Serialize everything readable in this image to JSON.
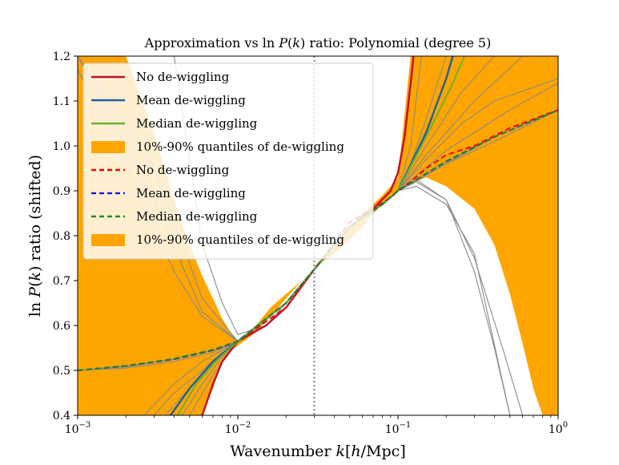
{
  "chart_data": {
    "type": "line",
    "title": "Approximation vs ln P(k) ratio: Polynomial (degree 5)",
    "xlabel": "Wavenumber k[h/Mpc]",
    "ylabel": "ln P(k) ratio (shifted)",
    "xscale": "log",
    "xlim": [
      0.001,
      1.0
    ],
    "ylim": [
      0.4,
      1.2
    ],
    "xticks": [
      {
        "value": 0.001,
        "label": "10^-3",
        "base": "10",
        "exp": "-3"
      },
      {
        "value": 0.01,
        "label": "10^-2",
        "base": "10",
        "exp": "-2"
      },
      {
        "value": 0.1,
        "label": "10^-1",
        "base": "10",
        "exp": "-1"
      },
      {
        "value": 1.0,
        "label": "10^0",
        "base": "10",
        "exp": "0"
      }
    ],
    "yticks": [
      {
        "value": 0.4,
        "label": "0.4"
      },
      {
        "value": 0.5,
        "label": "0.5"
      },
      {
        "value": 0.6,
        "label": "0.6"
      },
      {
        "value": 0.7,
        "label": "0.7"
      },
      {
        "value": 0.8,
        "label": "0.8"
      },
      {
        "value": 0.9,
        "label": "0.9"
      },
      {
        "value": 1.0,
        "label": "1.0"
      },
      {
        "value": 1.1,
        "label": "1.1"
      },
      {
        "value": 1.2,
        "label": "1.2"
      }
    ],
    "vline": {
      "x": 0.03,
      "style": "dotted",
      "color": "#888888"
    },
    "band": {
      "name": "10%-90% quantiles of de-wiggling",
      "color": "#ffa500",
      "x": [
        0.001,
        0.002,
        0.003,
        0.004,
        0.005,
        0.006,
        0.007,
        0.008,
        0.009,
        0.01,
        0.013,
        0.016,
        0.02,
        0.025,
        0.03,
        0.04,
        0.05,
        0.06,
        0.07,
        0.08,
        0.09,
        0.1,
        0.12,
        0.15,
        0.2,
        0.3,
        0.4,
        0.5,
        0.6,
        0.7,
        0.8,
        1.0
      ],
      "upper": [
        1.2,
        1.2,
        1.03,
        0.88,
        0.78,
        0.71,
        0.66,
        0.615,
        0.585,
        0.565,
        0.6,
        0.64,
        0.67,
        0.7,
        0.73,
        0.78,
        0.82,
        0.85,
        0.87,
        0.89,
        0.91,
        0.93,
        1.2,
        1.2,
        1.2,
        1.2,
        1.2,
        1.2,
        1.2,
        1.2,
        1.2,
        1.2
      ],
      "lower": [
        0.4,
        0.4,
        0.4,
        0.4,
        0.4,
        0.4,
        0.46,
        0.52,
        0.545,
        0.555,
        0.585,
        0.62,
        0.66,
        0.7,
        0.73,
        0.76,
        0.79,
        0.82,
        0.85,
        0.87,
        0.89,
        0.9,
        0.915,
        0.93,
        0.91,
        0.86,
        0.78,
        0.67,
        0.56,
        0.46,
        0.4,
        0.4
      ]
    },
    "gray_curves": [
      {
        "x": [
          0.001,
          0.003,
          0.006,
          0.01,
          0.02,
          0.03,
          0.05,
          0.08,
          0.1,
          0.13,
          0.2,
          0.3,
          0.45,
          0.6
        ],
        "y": [
          1.2,
          0.95,
          0.66,
          0.565,
          0.65,
          0.725,
          0.82,
          0.87,
          0.9,
          0.92,
          0.88,
          0.75,
          0.55,
          0.4
        ]
      },
      {
        "x": [
          0.001,
          0.003,
          0.006,
          0.01,
          0.02,
          0.03,
          0.05,
          0.08,
          0.1,
          0.13,
          0.2,
          0.3,
          0.4,
          0.5
        ],
        "y": [
          1.2,
          0.88,
          0.63,
          0.565,
          0.65,
          0.725,
          0.82,
          0.87,
          0.9,
          0.925,
          0.88,
          0.72,
          0.55,
          0.4
        ]
      },
      {
        "x": [
          0.001,
          0.002,
          0.004,
          0.006,
          0.01,
          0.02,
          0.03,
          0.05,
          0.08,
          0.1,
          0.15,
          0.25,
          0.4,
          1.0
        ],
        "y": [
          1.17,
          0.96,
          0.72,
          0.62,
          0.565,
          0.65,
          0.725,
          0.82,
          0.87,
          0.9,
          0.97,
          1.05,
          1.1,
          1.15
        ]
      },
      {
        "x": [
          0.001,
          0.002,
          0.004,
          0.007,
          0.01,
          0.02,
          0.03,
          0.05,
          0.08,
          0.1,
          0.2,
          0.4,
          1.0
        ],
        "y": [
          0.5,
          0.51,
          0.525,
          0.545,
          0.565,
          0.65,
          0.725,
          0.82,
          0.87,
          0.9,
          0.96,
          1.02,
          1.08
        ]
      },
      {
        "x": [
          0.001,
          0.002,
          0.004,
          0.007,
          0.01,
          0.02,
          0.03,
          0.05,
          0.08,
          0.1,
          0.2,
          0.4,
          1.0
        ],
        "y": [
          0.5,
          0.505,
          0.52,
          0.54,
          0.565,
          0.65,
          0.725,
          0.82,
          0.87,
          0.9,
          0.96,
          1.01,
          1.08
        ]
      },
      {
        "x": [
          0.003,
          0.004,
          0.006,
          0.008,
          0.01,
          0.02,
          0.03,
          0.05,
          0.08,
          0.1,
          0.12,
          0.15,
          0.2
        ],
        "y": [
          0.4,
          0.45,
          0.5,
          0.54,
          0.565,
          0.65,
          0.725,
          0.82,
          0.87,
          0.9,
          0.96,
          1.06,
          1.2
        ]
      },
      {
        "x": [
          0.0045,
          0.006,
          0.008,
          0.01,
          0.02,
          0.03,
          0.05,
          0.08,
          0.1,
          0.15,
          0.25,
          0.4
        ],
        "y": [
          0.4,
          0.47,
          0.53,
          0.565,
          0.65,
          0.725,
          0.82,
          0.87,
          0.9,
          1.0,
          1.12,
          1.2
        ]
      },
      {
        "x": [
          0.0035,
          0.005,
          0.007,
          0.01,
          0.02,
          0.03,
          0.05,
          0.08,
          0.1,
          0.15,
          0.3,
          0.6
        ],
        "y": [
          0.4,
          0.46,
          0.52,
          0.565,
          0.65,
          0.725,
          0.82,
          0.87,
          0.9,
          0.98,
          1.1,
          1.2
        ]
      },
      {
        "x": [
          0.005,
          0.007,
          0.01,
          0.02,
          0.03,
          0.05,
          0.08,
          0.1,
          0.12,
          0.14
        ],
        "y": [
          0.4,
          0.49,
          0.565,
          0.65,
          0.725,
          0.82,
          0.87,
          0.9,
          1.0,
          1.2
        ]
      },
      {
        "x": [
          0.0026,
          0.004,
          0.006,
          0.01,
          0.02,
          0.03,
          0.05,
          0.08,
          0.1,
          0.2,
          0.5,
          1.0
        ],
        "y": [
          0.4,
          0.47,
          0.52,
          0.565,
          0.65,
          0.725,
          0.82,
          0.87,
          0.9,
          0.99,
          1.08,
          1.14
        ]
      },
      {
        "x": [
          0.004,
          0.006,
          0.008,
          0.01,
          0.015,
          0.02,
          0.03,
          0.05,
          0.08,
          0.1,
          0.13,
          0.2,
          0.3,
          0.5
        ],
        "y": [
          1.2,
          0.78,
          0.65,
          0.58,
          0.6,
          0.65,
          0.725,
          0.82,
          0.87,
          0.9,
          0.91,
          0.87,
          0.76,
          0.4
        ]
      },
      {
        "x": [
          0.001,
          0.002,
          0.004,
          0.007,
          0.01,
          0.02,
          0.03,
          0.05,
          0.08,
          0.1,
          0.2,
          0.4,
          1.0
        ],
        "y": [
          0.5,
          0.508,
          0.525,
          0.545,
          0.565,
          0.65,
          0.725,
          0.82,
          0.87,
          0.9,
          0.965,
          1.02,
          1.08
        ]
      }
    ],
    "series": [
      {
        "name": "No de-wiggling",
        "color": "#c0102a",
        "style": "solid",
        "width": 2.4,
        "x": [
          0.006,
          0.007,
          0.008,
          0.01,
          0.015,
          0.02,
          0.03,
          0.05,
          0.07,
          0.09,
          0.1,
          0.11,
          0.12,
          0.125
        ],
        "y": [
          0.4,
          0.47,
          0.52,
          0.565,
          0.6,
          0.64,
          0.725,
          0.82,
          0.86,
          0.9,
          0.94,
          1.02,
          1.14,
          1.2
        ]
      },
      {
        "name": "Mean de-wiggling",
        "color": "#1f5fa0",
        "style": "solid",
        "width": 2.4,
        "x": [
          0.0038,
          0.005,
          0.007,
          0.01,
          0.02,
          0.03,
          0.05,
          0.08,
          0.1,
          0.15,
          0.2,
          0.22
        ],
        "y": [
          0.4,
          0.46,
          0.52,
          0.565,
          0.65,
          0.725,
          0.82,
          0.87,
          0.9,
          1.03,
          1.15,
          1.2
        ]
      },
      {
        "name": "Median de-wiggling",
        "color": "#6ab32e",
        "style": "solid",
        "width": 2.0,
        "x": [
          0.0042,
          0.0055,
          0.0075,
          0.01,
          0.02,
          0.03,
          0.05,
          0.08,
          0.1,
          0.15,
          0.22,
          0.26
        ],
        "y": [
          0.4,
          0.47,
          0.525,
          0.565,
          0.65,
          0.725,
          0.82,
          0.87,
          0.9,
          1.02,
          1.14,
          1.2
        ]
      },
      {
        "name": "No de-wiggling",
        "color": "#ff0000",
        "style": "dashed",
        "width": 2.0,
        "x": [
          0.001,
          0.002,
          0.004,
          0.007,
          0.01,
          0.02,
          0.03,
          0.05,
          0.07,
          0.09,
          0.1,
          0.12,
          0.15,
          0.2,
          0.3,
          0.5,
          1.0
        ],
        "y": [
          0.5,
          0.51,
          0.525,
          0.545,
          0.565,
          0.64,
          0.725,
          0.83,
          0.86,
          0.885,
          0.9,
          0.92,
          0.95,
          0.98,
          1.0,
          1.04,
          1.08
        ]
      },
      {
        "name": "Mean de-wiggling",
        "color": "#1a1aff",
        "style": "dashed",
        "width": 2.0,
        "x": [
          0.001,
          0.002,
          0.004,
          0.007,
          0.01,
          0.02,
          0.03,
          0.05,
          0.08,
          0.1,
          0.2,
          0.4,
          1.0
        ],
        "y": [
          0.5,
          0.51,
          0.525,
          0.545,
          0.565,
          0.65,
          0.725,
          0.82,
          0.87,
          0.9,
          0.965,
          1.02,
          1.08
        ]
      },
      {
        "name": "Median de-wiggling",
        "color": "#1f8a1f",
        "style": "dashed",
        "width": 2.0,
        "x": [
          0.001,
          0.002,
          0.004,
          0.007,
          0.01,
          0.02,
          0.03,
          0.05,
          0.08,
          0.1,
          0.2,
          0.4,
          1.0
        ],
        "y": [
          0.5,
          0.51,
          0.526,
          0.546,
          0.565,
          0.65,
          0.725,
          0.82,
          0.87,
          0.9,
          0.966,
          1.02,
          1.08
        ]
      }
    ],
    "legend": {
      "placement": "upper-left",
      "entries": [
        {
          "label": "No de-wiggling",
          "kind": "line",
          "color": "#c0102a",
          "style": "solid"
        },
        {
          "label": "Mean de-wiggling",
          "kind": "line",
          "color": "#1f5fa0",
          "style": "solid"
        },
        {
          "label": "Median de-wiggling",
          "kind": "line",
          "color": "#6ab32e",
          "style": "solid"
        },
        {
          "label": "10%-90% quantiles of de-wiggling",
          "kind": "patch",
          "color": "#ffa500",
          "style": "solid"
        },
        {
          "label": "No de-wiggling",
          "kind": "line",
          "color": "#ff0000",
          "style": "dashed"
        },
        {
          "label": "Mean de-wiggling",
          "kind": "line",
          "color": "#1a1aff",
          "style": "dashed"
        },
        {
          "label": "Median de-wiggling",
          "kind": "line",
          "color": "#1f8a1f",
          "style": "dashed"
        },
        {
          "label": "10%-90% quantiles of de-wiggling",
          "kind": "patch",
          "color": "#ffa500",
          "style": "solid"
        }
      ]
    }
  }
}
